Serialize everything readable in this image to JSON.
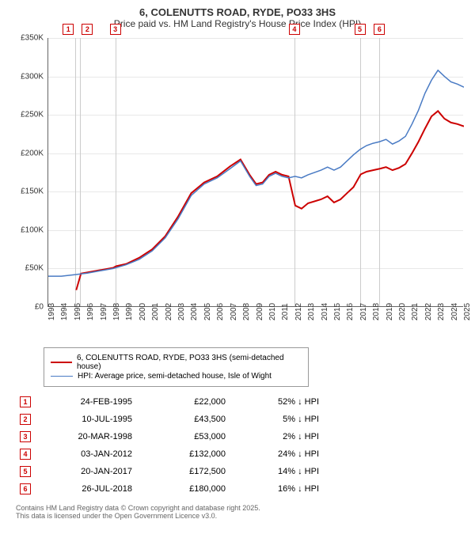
{
  "title": "6, COLENUTTS ROAD, RYDE, PO33 3HS",
  "subtitle": "Price paid vs. HM Land Registry's House Price Index (HPI)",
  "chart": {
    "type": "line",
    "background_color": "#ffffff",
    "grid_color": "#e8e8e8",
    "ylabel_prefix": "£",
    "ylim": [
      0,
      350
    ],
    "ytick_step": 50,
    "yticks": [
      "£0",
      "£50K",
      "£100K",
      "£150K",
      "£200K",
      "£250K",
      "£300K",
      "£350K"
    ],
    "xlim": [
      1993,
      2025
    ],
    "xticks": [
      1993,
      1994,
      1995,
      1996,
      1997,
      1998,
      1999,
      2000,
      2001,
      2002,
      2003,
      2004,
      2005,
      2006,
      2007,
      2008,
      2009,
      2010,
      2011,
      2012,
      2013,
      2014,
      2015,
      2016,
      2017,
      2018,
      2019,
      2020,
      2021,
      2022,
      2023,
      2024,
      2025
    ],
    "series": [
      {
        "name": "6, COLENUTTS ROAD, RYDE, PO33 3HS (semi-detached house)",
        "color": "#cc0000",
        "line_width": 2,
        "points": [
          [
            1995.15,
            22
          ],
          [
            1995.52,
            43.5
          ],
          [
            1996,
            45
          ],
          [
            1997,
            48
          ],
          [
            1998,
            51
          ],
          [
            1998.22,
            53
          ],
          [
            1999,
            56
          ],
          [
            2000,
            64
          ],
          [
            2001,
            75
          ],
          [
            2002,
            92
          ],
          [
            2003,
            118
          ],
          [
            2004,
            148
          ],
          [
            2005,
            162
          ],
          [
            2006,
            170
          ],
          [
            2007,
            183
          ],
          [
            2007.8,
            192
          ],
          [
            2008.5,
            172
          ],
          [
            2009,
            160
          ],
          [
            2009.5,
            162
          ],
          [
            2010,
            172
          ],
          [
            2010.5,
            176
          ],
          [
            2011,
            172
          ],
          [
            2011.5,
            170
          ],
          [
            2012.01,
            132
          ],
          [
            2012.5,
            128
          ],
          [
            2013,
            135
          ],
          [
            2014,
            140
          ],
          [
            2014.5,
            144
          ],
          [
            2015,
            136
          ],
          [
            2015.5,
            140
          ],
          [
            2016,
            148
          ],
          [
            2016.5,
            156
          ],
          [
            2017.05,
            172.5
          ],
          [
            2017.5,
            176
          ],
          [
            2018,
            178
          ],
          [
            2018.56,
            180
          ],
          [
            2019,
            182
          ],
          [
            2019.5,
            178
          ],
          [
            2020,
            181
          ],
          [
            2020.5,
            186
          ],
          [
            2021,
            200
          ],
          [
            2021.5,
            215
          ],
          [
            2022,
            232
          ],
          [
            2022.5,
            248
          ],
          [
            2023,
            255
          ],
          [
            2023.5,
            245
          ],
          [
            2024,
            240
          ],
          [
            2024.5,
            238
          ],
          [
            2025,
            235
          ]
        ]
      },
      {
        "name": "HPI: Average price, semi-detached house, Isle of Wight",
        "color": "#4a7bc4",
        "line_width": 1.5,
        "points": [
          [
            1993,
            40
          ],
          [
            1994,
            40
          ],
          [
            1995,
            42
          ],
          [
            1996,
            44
          ],
          [
            1997,
            47
          ],
          [
            1998,
            50
          ],
          [
            1999,
            55
          ],
          [
            2000,
            62
          ],
          [
            2001,
            73
          ],
          [
            2002,
            90
          ],
          [
            2003,
            115
          ],
          [
            2004,
            145
          ],
          [
            2005,
            160
          ],
          [
            2006,
            168
          ],
          [
            2007,
            180
          ],
          [
            2007.8,
            190
          ],
          [
            2008.5,
            170
          ],
          [
            2009,
            158
          ],
          [
            2009.5,
            160
          ],
          [
            2010,
            170
          ],
          [
            2010.5,
            174
          ],
          [
            2011,
            170
          ],
          [
            2011.5,
            168
          ],
          [
            2012,
            170
          ],
          [
            2012.5,
            168
          ],
          [
            2013,
            172
          ],
          [
            2014,
            178
          ],
          [
            2014.5,
            182
          ],
          [
            2015,
            178
          ],
          [
            2015.5,
            182
          ],
          [
            2016,
            190
          ],
          [
            2016.5,
            198
          ],
          [
            2017,
            205
          ],
          [
            2017.5,
            210
          ],
          [
            2018,
            213
          ],
          [
            2018.5,
            215
          ],
          [
            2019,
            218
          ],
          [
            2019.5,
            212
          ],
          [
            2020,
            216
          ],
          [
            2020.5,
            222
          ],
          [
            2021,
            238
          ],
          [
            2021.5,
            256
          ],
          [
            2022,
            278
          ],
          [
            2022.5,
            295
          ],
          [
            2023,
            308
          ],
          [
            2023.5,
            300
          ],
          [
            2024,
            293
          ],
          [
            2024.5,
            290
          ],
          [
            2025,
            286
          ]
        ]
      }
    ],
    "markers": [
      {
        "n": "1",
        "year": 1995.15,
        "double": true
      },
      {
        "n": "2",
        "year": 1995.52,
        "double": false,
        "hidden": true
      },
      {
        "n": "3",
        "year": 1998.22,
        "double": false
      },
      {
        "n": "4",
        "year": 2012.01,
        "double": false
      },
      {
        "n": "5",
        "year": 2017.05,
        "double": false
      },
      {
        "n": "6",
        "year": 2018.56,
        "double": false
      }
    ]
  },
  "legend": [
    {
      "color": "#cc0000",
      "width": 2,
      "label": "6, COLENUTTS ROAD, RYDE, PO33 3HS (semi-detached house)"
    },
    {
      "color": "#4a7bc4",
      "width": 1.5,
      "label": "HPI: Average price, semi-detached house, Isle of Wight"
    }
  ],
  "transactions": [
    {
      "n": "1",
      "date": "24-FEB-1995",
      "price": "£22,000",
      "diff": "52% ↓ HPI"
    },
    {
      "n": "2",
      "date": "10-JUL-1995",
      "price": "£43,500",
      "diff": "5% ↓ HPI"
    },
    {
      "n": "3",
      "date": "20-MAR-1998",
      "price": "£53,000",
      "diff": "2% ↓ HPI"
    },
    {
      "n": "4",
      "date": "03-JAN-2012",
      "price": "£132,000",
      "diff": "24% ↓ HPI"
    },
    {
      "n": "5",
      "date": "20-JAN-2017",
      "price": "£172,500",
      "diff": "14% ↓ HPI"
    },
    {
      "n": "6",
      "date": "26-JUL-2018",
      "price": "£180,000",
      "diff": "16% ↓ HPI"
    }
  ],
  "footer1": "Contains HM Land Registry data © Crown copyright and database right 2025.",
  "footer2": "This data is licensed under the Open Government Licence v3.0."
}
